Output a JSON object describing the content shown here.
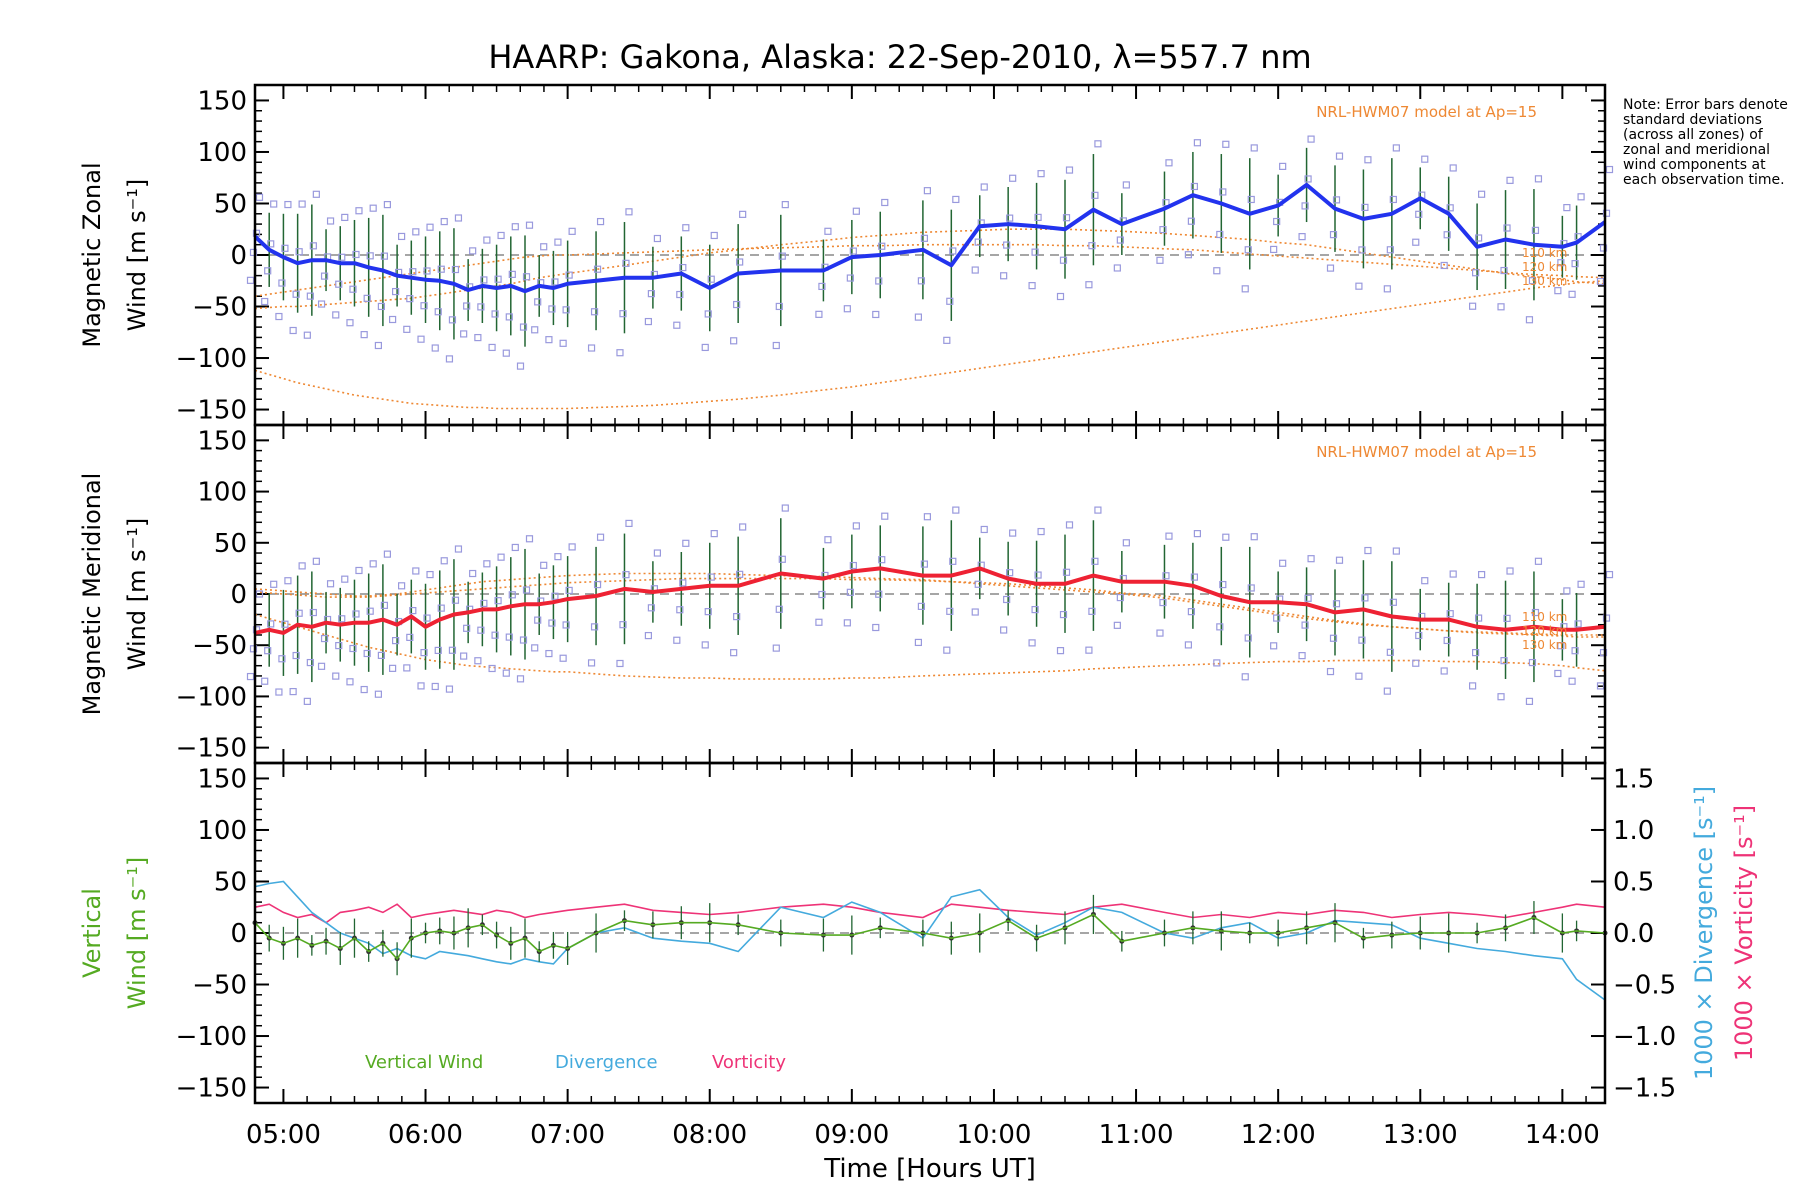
{
  "title": "HAARP: Gakona,  Alaska: 22-Sep-2010, λ=557.7 nm",
  "note": "Note: Error bars denote standard deviations (across all zones) of zonal and meridional wind components at each observation time.",
  "x_axis": {
    "label": "Time [Hours UT]",
    "range": [
      4.8,
      14.3
    ],
    "tick_labels": [
      "05:00",
      "06:00",
      "07:00",
      "08:00",
      "09:00",
      "10:00",
      "11:00",
      "12:00",
      "13:00",
      "14:00"
    ],
    "tick_values": [
      5,
      6,
      7,
      8,
      9,
      10,
      11,
      12,
      13,
      14
    ]
  },
  "colors": {
    "zonal": "#2233ee",
    "meridional": "#ee2233",
    "vertical": "#55aa22",
    "divergence": "#44aadd",
    "vorticity": "#ee3377",
    "model": "#ee8833",
    "errorbar": "#226633",
    "zone_points": "#9999dd",
    "zero_line": "#888888"
  },
  "chart_data": [
    {
      "type": "line",
      "panel": "zonal",
      "ylabel_line1": "Magnetic Zonal",
      "ylabel_line2": "Wind [m s⁻¹]",
      "ylim": [
        -165,
        165
      ],
      "yticks": [
        150,
        100,
        50,
        0,
        -50,
        -100,
        -150
      ],
      "ytick_labels": [
        "150",
        "100",
        "50",
        "0",
        "−50",
        "−100",
        "−150"
      ],
      "model_label": "NRL-HWM07 model at Ap=15",
      "model_altitude_labels": [
        "110 km",
        "120 km",
        "130 km"
      ],
      "x": [
        4.8,
        4.9,
        5.0,
        5.1,
        5.2,
        5.3,
        5.4,
        5.5,
        5.6,
        5.7,
        5.8,
        5.9,
        6.0,
        6.1,
        6.2,
        6.3,
        6.4,
        6.5,
        6.6,
        6.7,
        6.8,
        6.9,
        7.0,
        7.2,
        7.4,
        7.6,
        7.8,
        8.0,
        8.2,
        8.5,
        8.8,
        9.0,
        9.2,
        9.5,
        9.7,
        9.9,
        10.1,
        10.3,
        10.5,
        10.7,
        10.9,
        11.2,
        11.4,
        11.6,
        11.8,
        12.0,
        12.2,
        12.4,
        12.6,
        12.8,
        13.0,
        13.2,
        13.4,
        13.6,
        13.8,
        14.0,
        14.1,
        14.3
      ],
      "series": [
        {
          "name": "zonal",
          "values": [
            18,
            5,
            -2,
            -8,
            -5,
            -5,
            -8,
            -8,
            -12,
            -15,
            -20,
            -22,
            -24,
            -25,
            -28,
            -34,
            -30,
            -32,
            -30,
            -35,
            -30,
            -32,
            -28,
            -25,
            -22,
            -22,
            -18,
            -32,
            -18,
            -15,
            -15,
            -2,
            0,
            5,
            -10,
            28,
            30,
            28,
            25,
            44,
            30,
            45,
            58,
            50,
            40,
            48,
            68,
            45,
            35,
            40,
            55,
            40,
            8,
            15,
            10,
            8,
            12,
            32
          ]
        },
        {
          "name": "model_a",
          "values": [
            -52,
            -51,
            -50,
            -50,
            -49,
            -48,
            -47,
            -46,
            -45,
            -44,
            -43,
            -42,
            -40,
            -38,
            -36,
            -34,
            -32,
            -30,
            -28,
            -25,
            -22,
            -20,
            -18,
            -14,
            -10,
            -6,
            -2,
            2,
            5,
            10,
            14,
            17,
            19,
            22,
            23,
            24,
            25,
            25,
            25,
            24,
            23,
            21,
            19,
            17,
            15,
            12,
            10,
            6,
            2,
            -2,
            -6,
            -10,
            -14,
            -18,
            -21,
            -24,
            -26,
            -28
          ]
        },
        {
          "name": "model_b",
          "values": [
            -112,
            -116,
            -120,
            -124,
            -127,
            -130,
            -133,
            -136,
            -138,
            -140,
            -142,
            -144,
            -145,
            -146,
            -147,
            -148,
            -148,
            -149,
            -149,
            -149,
            -149,
            -149,
            -149,
            -148,
            -147,
            -146,
            -144,
            -142,
            -140,
            -136,
            -131,
            -128,
            -124,
            -118,
            -114,
            -110,
            -106,
            -102,
            -98,
            -94,
            -90,
            -84,
            -80,
            -76,
            -72,
            -68,
            -64,
            -60,
            -56,
            -52,
            -48,
            -44,
            -40,
            -36,
            -32,
            -29,
            -27,
            -25
          ]
        },
        {
          "name": "model_c",
          "values": [
            -40,
            -38,
            -36,
            -34,
            -32,
            -30,
            -28,
            -26,
            -24,
            -22,
            -20,
            -18,
            -16,
            -14,
            -12,
            -10,
            -8,
            -6,
            -4,
            -2,
            -1,
            0,
            0,
            1,
            2,
            3,
            4,
            5,
            6,
            7,
            8,
            9,
            9,
            10,
            10,
            10,
            10,
            10,
            9,
            9,
            8,
            6,
            5,
            3,
            1,
            -1,
            -3,
            -5,
            -7,
            -9,
            -11,
            -13,
            -15,
            -17,
            -19,
            -20,
            -21,
            -22
          ]
        }
      ]
    },
    {
      "type": "line",
      "panel": "meridional",
      "ylabel_line1": "Magnetic Meridional",
      "ylabel_line2": "Wind [m s⁻¹]",
      "ylim": [
        -165,
        165
      ],
      "yticks": [
        150,
        100,
        50,
        0,
        -50,
        -100,
        -150
      ],
      "ytick_labels": [
        "150",
        "100",
        "50",
        "0",
        "−50",
        "−100",
        "−150"
      ],
      "model_label": "NRL-HWM07 model at Ap=15",
      "model_altitude_labels": [
        "110 km",
        "120 km",
        "130 km"
      ],
      "x": [
        4.8,
        4.9,
        5.0,
        5.1,
        5.2,
        5.3,
        5.4,
        5.5,
        5.6,
        5.7,
        5.8,
        5.9,
        6.0,
        6.1,
        6.2,
        6.3,
        6.4,
        6.5,
        6.6,
        6.7,
        6.8,
        6.9,
        7.0,
        7.2,
        7.4,
        7.6,
        7.8,
        8.0,
        8.2,
        8.5,
        8.8,
        9.0,
        9.2,
        9.5,
        9.7,
        9.9,
        10.1,
        10.3,
        10.5,
        10.7,
        10.9,
        11.2,
        11.4,
        11.6,
        11.8,
        12.0,
        12.2,
        12.4,
        12.6,
        12.8,
        13.0,
        13.2,
        13.4,
        13.6,
        13.8,
        14.0,
        14.1,
        14.3
      ],
      "series": [
        {
          "name": "meridional",
          "values": [
            -38,
            -35,
            -38,
            -30,
            -32,
            -28,
            -30,
            -28,
            -28,
            -25,
            -30,
            -22,
            -32,
            -25,
            -20,
            -18,
            -15,
            -15,
            -12,
            -10,
            -10,
            -8,
            -5,
            -2,
            5,
            2,
            5,
            8,
            8,
            20,
            15,
            22,
            25,
            18,
            18,
            25,
            15,
            10,
            10,
            18,
            12,
            12,
            8,
            -2,
            -8,
            -8,
            -10,
            -18,
            -15,
            -22,
            -25,
            -25,
            -32,
            -35,
            -32,
            -35,
            -35,
            -32
          ]
        },
        {
          "name": "model_a",
          "values": [
            5,
            4,
            3,
            2,
            1,
            0,
            -1,
            -2,
            -2,
            -1,
            0,
            2,
            4,
            6,
            8,
            10,
            12,
            13,
            14,
            15,
            16,
            17,
            18,
            19,
            20,
            20,
            20,
            20,
            19,
            18,
            17,
            16,
            15,
            14,
            12,
            10,
            8,
            6,
            4,
            2,
            0,
            -4,
            -8,
            -12,
            -16,
            -20,
            -24,
            -27,
            -30,
            -32,
            -34,
            -36,
            -37,
            -38,
            -39,
            -40,
            -40,
            -40
          ]
        },
        {
          "name": "model_b",
          "values": [
            -20,
            -24,
            -28,
            -32,
            -36,
            -40,
            -44,
            -48,
            -52,
            -55,
            -58,
            -61,
            -64,
            -66,
            -68,
            -70,
            -71,
            -72,
            -73,
            -74,
            -75,
            -76,
            -76,
            -78,
            -80,
            -81,
            -82,
            -82,
            -83,
            -83,
            -83,
            -82,
            -82,
            -80,
            -79,
            -78,
            -77,
            -76,
            -75,
            -73,
            -72,
            -70,
            -69,
            -68,
            -67,
            -66,
            -66,
            -65,
            -65,
            -65,
            -65,
            -66,
            -66,
            -67,
            -68,
            -70,
            -72,
            -75
          ]
        },
        {
          "name": "model_c",
          "values": [
            2,
            1,
            0,
            -1,
            -2,
            -3,
            -3,
            -3,
            -3,
            -2,
            -1,
            0,
            1,
            2,
            3,
            4,
            5,
            6,
            7,
            8,
            9,
            10,
            11,
            12,
            13,
            14,
            15,
            15,
            15,
            15,
            15,
            14,
            14,
            13,
            12,
            11,
            10,
            8,
            6,
            4,
            1,
            -2,
            -6,
            -10,
            -14,
            -18,
            -22,
            -26,
            -29,
            -32,
            -34,
            -36,
            -38,
            -39,
            -40,
            -41,
            -42,
            -42
          ]
        }
      ]
    },
    {
      "type": "line",
      "panel": "vertical",
      "ylabel_line1": "Vertical",
      "ylabel_line2": "Wind [m s⁻¹]",
      "ylim": [
        -165,
        165
      ],
      "yticks": [
        150,
        100,
        50,
        0,
        -50,
        -100,
        -150
      ],
      "ytick_labels": [
        "150",
        "100",
        "50",
        "0",
        "−50",
        "−100",
        "−150"
      ],
      "right_ylim": [
        -1.65,
        1.65
      ],
      "right_yticks": [
        1.5,
        1.0,
        0.5,
        0.0,
        -0.5,
        -1.0,
        -1.5
      ],
      "right_ytick_labels": [
        "1.5",
        "1.0",
        "0.5",
        "0.0",
        "−0.5",
        "−1.0",
        "−1.5"
      ],
      "right_label_divergence": "1000 × Divergence [s⁻¹]",
      "right_label_vorticity": "1000 × Vorticity [s⁻¹]",
      "legend": [
        "Vertical Wind",
        "Divergence",
        "Vorticity"
      ],
      "x": [
        4.8,
        4.9,
        5.0,
        5.1,
        5.2,
        5.3,
        5.4,
        5.5,
        5.6,
        5.7,
        5.8,
        5.9,
        6.0,
        6.1,
        6.2,
        6.3,
        6.4,
        6.5,
        6.6,
        6.7,
        6.8,
        6.9,
        7.0,
        7.2,
        7.4,
        7.6,
        7.8,
        8.0,
        8.2,
        8.5,
        8.8,
        9.0,
        9.2,
        9.5,
        9.7,
        9.9,
        10.1,
        10.3,
        10.5,
        10.7,
        10.9,
        11.2,
        11.4,
        11.6,
        11.8,
        12.0,
        12.2,
        12.4,
        12.6,
        12.8,
        13.0,
        13.2,
        13.4,
        13.6,
        13.8,
        14.0,
        14.1,
        14.3
      ],
      "series": [
        {
          "name": "Vertical Wind",
          "values": [
            10,
            -5,
            -10,
            -5,
            -12,
            -8,
            -15,
            -5,
            -18,
            -10,
            -25,
            -5,
            0,
            2,
            0,
            5,
            8,
            -2,
            -10,
            -5,
            -18,
            -12,
            -15,
            0,
            12,
            8,
            10,
            10,
            8,
            0,
            -2,
            -2,
            5,
            0,
            -5,
            0,
            12,
            -5,
            5,
            18,
            -8,
            0,
            5,
            2,
            0,
            0,
            5,
            10,
            -5,
            -2,
            0,
            0,
            0,
            5,
            15,
            0,
            2,
            0
          ]
        },
        {
          "name": "Divergence",
          "values": [
            0.45,
            0.48,
            0.5,
            0.35,
            0.2,
            0.1,
            0.0,
            -0.05,
            -0.1,
            -0.2,
            -0.15,
            -0.22,
            -0.25,
            -0.18,
            -0.2,
            -0.22,
            -0.25,
            -0.28,
            -0.3,
            -0.25,
            -0.28,
            -0.3,
            -0.15,
            0.0,
            0.05,
            -0.05,
            -0.08,
            -0.1,
            -0.18,
            0.25,
            0.15,
            0.3,
            0.2,
            -0.05,
            0.35,
            0.42,
            0.15,
            -0.02,
            0.1,
            0.25,
            0.2,
            0.0,
            -0.05,
            0.05,
            0.1,
            -0.05,
            0.0,
            0.12,
            0.1,
            0.08,
            -0.05,
            -0.1,
            -0.15,
            -0.18,
            -0.22,
            -0.25,
            -0.45,
            -0.65
          ]
        },
        {
          "name": "Vorticity",
          "values": [
            0.25,
            0.28,
            0.2,
            0.15,
            0.18,
            0.1,
            0.2,
            0.22,
            0.25,
            0.2,
            0.28,
            0.15,
            0.18,
            0.2,
            0.22,
            0.2,
            0.18,
            0.22,
            0.2,
            0.15,
            0.18,
            0.2,
            0.22,
            0.25,
            0.28,
            0.22,
            0.2,
            0.18,
            0.2,
            0.25,
            0.28,
            0.25,
            0.2,
            0.15,
            0.28,
            0.25,
            0.22,
            0.2,
            0.18,
            0.25,
            0.28,
            0.2,
            0.15,
            0.18,
            0.15,
            0.2,
            0.18,
            0.22,
            0.2,
            0.15,
            0.18,
            0.2,
            0.18,
            0.15,
            0.2,
            0.25,
            0.28,
            0.25
          ]
        }
      ]
    }
  ]
}
